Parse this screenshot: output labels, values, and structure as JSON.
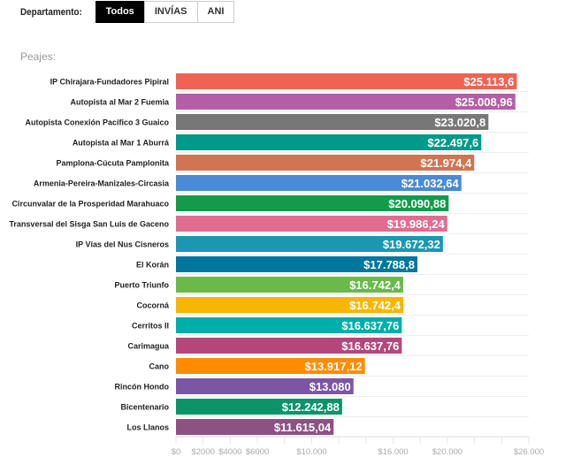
{
  "filter": {
    "label": "Departamento:",
    "options": [
      "Todos",
      "INVÍAS",
      "ANI"
    ],
    "selected": "Todos"
  },
  "chart_data": {
    "type": "bar",
    "orientation": "horizontal",
    "title": "Peajes:",
    "categories": [
      "IP Chirajara-Fundadores Pipiral",
      "Autopista al Mar 2 Fuemia",
      "Autopista Conexión Pacífico 3 Guaico",
      "Autopista al Mar 1 Aburrá",
      "Pamplona-Cúcuta Pamplonita",
      "Armenia-Pereira-Manizales-Circasia",
      "Circunvalar de la Prosperidad Marahuaco",
      "Transversal del Sisga San Luis de Gaceno",
      "IP Vías del Nus Cisneros",
      "El Korán",
      "Puerto Triunfo",
      "Cocorná",
      "Cerritos II",
      "Carimagua",
      "Cano",
      "Rincón Hondo",
      "Bicentenario",
      "Los Llanos"
    ],
    "values": [
      25113.6,
      25008.96,
      23020.8,
      22497.6,
      21974.4,
      21032.64,
      20090.88,
      19986.24,
      19672.32,
      17788.8,
      16742.4,
      16742.4,
      16637.76,
      16637.76,
      13917.12,
      13080,
      12242.88,
      11615.04
    ],
    "labels": [
      "$25.113,6",
      "$25.008,96",
      "$23.020,8",
      "$22.497,6",
      "$21.974,4",
      "$21.032,64",
      "$20.090,88",
      "$19.986,24",
      "$19.672,32",
      "$17.788,8",
      "$16.742,4",
      "$16.742,4",
      "$16.637,76",
      "$16.637,76",
      "$13.917,12",
      "$13.080",
      "$12.242,88",
      "$11.615,04"
    ],
    "colors": [
      "#ee6352",
      "#b45fa5",
      "#777777",
      "#00998a",
      "#cf7552",
      "#4a8ad6",
      "#139a4a",
      "#e06c8f",
      "#1b97b5",
      "#00779c",
      "#6ab94b",
      "#f9b600",
      "#00aeaa",
      "#b5467c",
      "#ff8c00",
      "#7b56a5",
      "#0b9468",
      "#8c5283"
    ],
    "xlim": [
      0,
      26000
    ],
    "tick_values": [
      0,
      2000,
      4000,
      6000,
      8000,
      10000,
      12000,
      14000,
      16000,
      18000,
      20000,
      22000,
      24000,
      26000
    ],
    "tick_labels": [
      "$0",
      "$2000",
      "$4000",
      "$6000",
      "",
      "$10.000",
      "",
      "",
      "$16.000",
      "",
      "$20.000",
      "",
      "",
      "$26.000"
    ],
    "grid": true
  }
}
